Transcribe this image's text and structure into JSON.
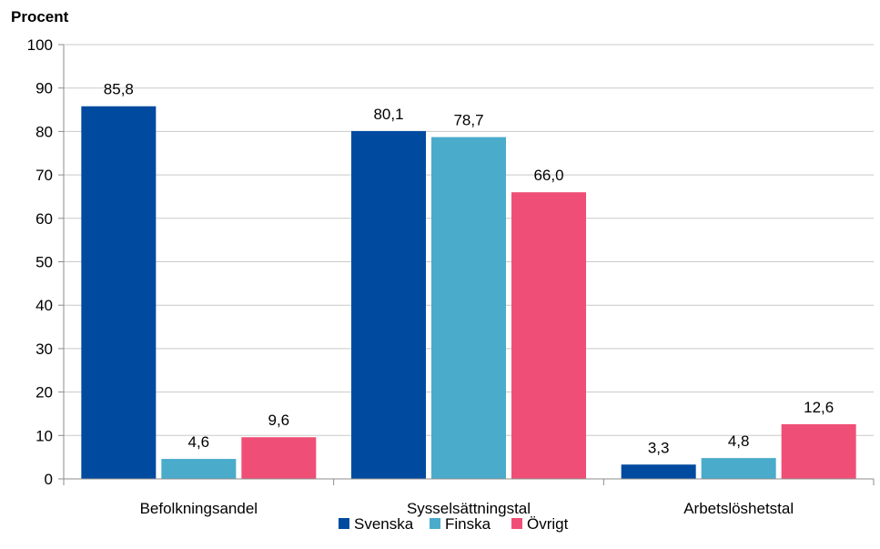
{
  "chart_data": {
    "type": "bar",
    "ylabel": "Procent",
    "ylim": [
      0,
      100
    ],
    "yticks": [
      0,
      10,
      20,
      30,
      40,
      50,
      60,
      70,
      80,
      90,
      100
    ],
    "categories": [
      "Befolkningsandel",
      "Sysselsättningstal",
      "Arbetslöshetstal"
    ],
    "series": [
      {
        "name": "Svenska",
        "color": "#004a9f",
        "values": [
          85.8,
          80.1,
          3.3
        ],
        "labels": [
          "85,8",
          "80,1",
          "3,3"
        ]
      },
      {
        "name": "Finska",
        "color": "#4aabcb",
        "values": [
          4.6,
          78.7,
          4.8
        ],
        "labels": [
          "4,6",
          "78,7",
          "4,8"
        ]
      },
      {
        "name": "Övrigt",
        "color": "#ef4f76",
        "values": [
          9.6,
          66.0,
          12.6
        ],
        "labels": [
          "9,6",
          "66,0",
          "12,6"
        ]
      }
    ],
    "grid": true,
    "legend": "bottom"
  }
}
